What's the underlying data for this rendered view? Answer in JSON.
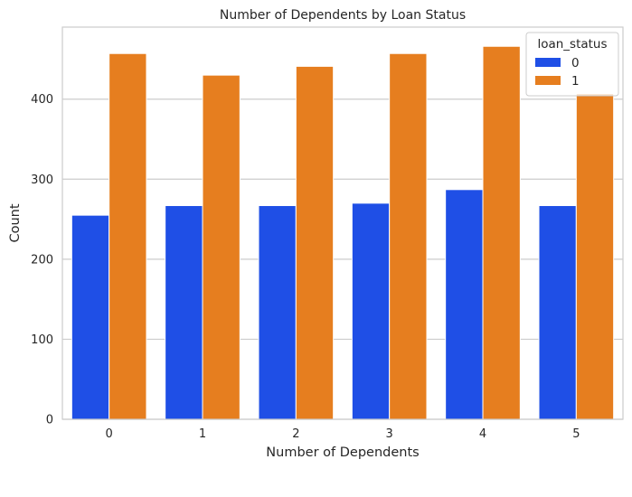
{
  "chart_data": {
    "type": "bar",
    "title": "Number of Dependents by Loan Status",
    "xlabel": "Number of Dependents",
    "ylabel": "Count",
    "categories": [
      "0",
      "1",
      "2",
      "3",
      "4",
      "5"
    ],
    "series": [
      {
        "name": "0",
        "color": "#1f4fe6",
        "values": [
          255,
          267,
          267,
          270,
          287,
          267
        ]
      },
      {
        "name": "1",
        "color": "#e67e1f",
        "values": [
          457,
          430,
          441,
          457,
          466,
          407
        ]
      }
    ],
    "ylim": [
      0,
      490
    ],
    "yticks": [
      0,
      100,
      200,
      300,
      400
    ],
    "grid": true,
    "legend": {
      "title": "loan_status",
      "placement": "top-right"
    }
  }
}
